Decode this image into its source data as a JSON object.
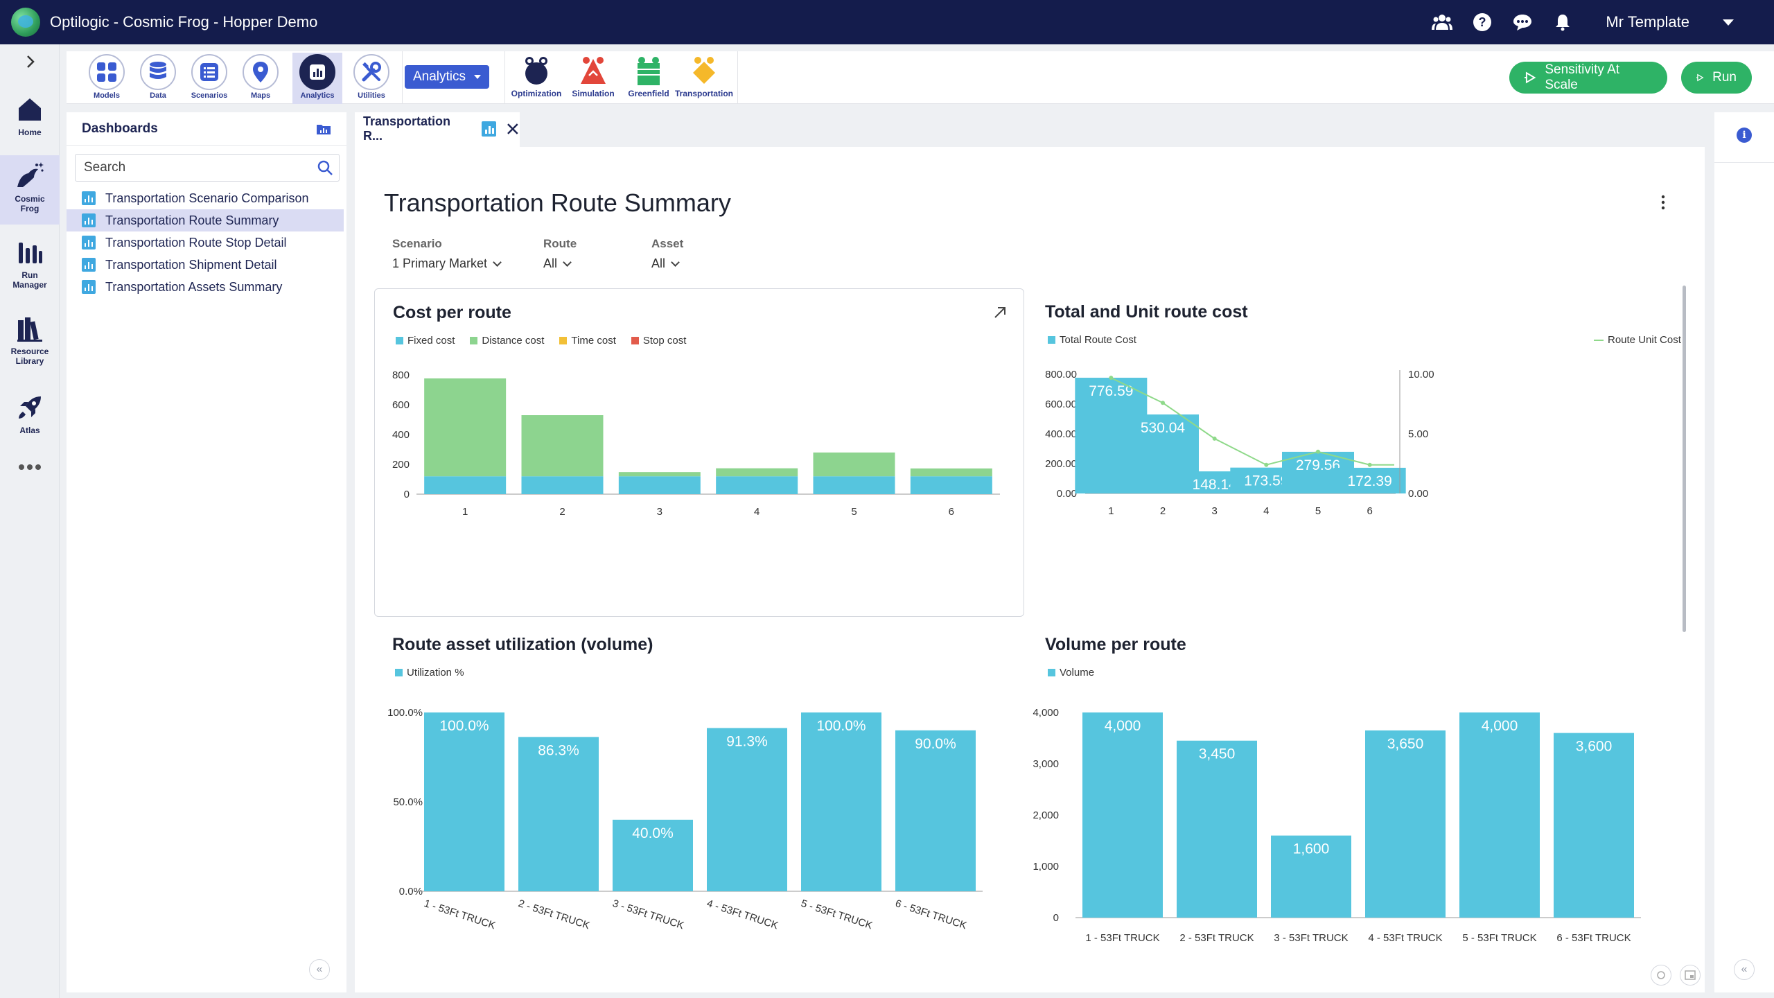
{
  "titlebar": {
    "title": "Optilogic - Cosmic Frog - Hopper Demo",
    "user": "Mr Template"
  },
  "rail": {
    "home": "Home",
    "cosmic_frog_1": "Cosmic",
    "cosmic_frog_2": "Frog",
    "run_manager_1": "Run",
    "run_manager_2": "Manager",
    "resource_library_1": "Resource",
    "resource_library_2": "Library",
    "atlas": "Atlas"
  },
  "toolbar": {
    "models": "Models",
    "data": "Data",
    "scenarios": "Scenarios",
    "maps": "Maps",
    "analytics": "Analytics",
    "utilities": "Utilities",
    "analytics_dropdown": "Analytics",
    "optimization": "Optimization",
    "simulation": "Simulation",
    "greenfield": "Greenfield",
    "transportation": "Transportation",
    "sensitivity": "Sensitivity At Scale",
    "run": "Run"
  },
  "dashboards": {
    "title": "Dashboards",
    "search_placeholder": "Search",
    "items": [
      "Transportation Scenario Comparison",
      "Transportation Route Summary",
      "Transportation Route Stop Detail",
      "Transportation Shipment Detail",
      "Transportation Assets Summary"
    ],
    "selected_index": 1
  },
  "tab": {
    "label": "Transportation R..."
  },
  "page": {
    "title": "Transportation Route Summary",
    "filters": [
      {
        "label": "Scenario",
        "value": "1 Primary Market"
      },
      {
        "label": "Route",
        "value": "All"
      },
      {
        "label": "Asset",
        "value": "All"
      }
    ]
  },
  "colors": {
    "cyan": "#56c5de",
    "green": "#8dd48f",
    "yellow": "#f2c037",
    "red": "#e25b4b",
    "line": "#8fd98a",
    "navy": "#141c4c",
    "accent": "#3a5bd1",
    "run_green": "#2eb366"
  },
  "chart_data": [
    {
      "id": "cost_per_route",
      "type": "bar",
      "title": "Cost per route",
      "stacked": true,
      "categories": [
        "1",
        "2",
        "3",
        "4",
        "5",
        "6"
      ],
      "series": [
        {
          "name": "Fixed cost",
          "color": "#56c5de",
          "values": [
            120,
            120,
            120,
            120,
            120,
            120
          ]
        },
        {
          "name": "Distance cost",
          "color": "#8dd48f",
          "values": [
            656.59,
            410.04,
            28.14,
            53.59,
            159.56,
            52.39
          ]
        },
        {
          "name": "Time cost",
          "color": "#f2c037",
          "values": [
            0,
            0,
            0,
            0,
            0,
            0
          ]
        },
        {
          "name": "Stop cost",
          "color": "#e25b4b",
          "values": [
            0,
            0,
            0,
            0,
            0,
            0
          ]
        }
      ],
      "yticks": [
        "800",
        "600",
        "400",
        "200",
        "0"
      ],
      "ylim": [
        0,
        800
      ],
      "legend": "top-left"
    },
    {
      "id": "total_unit_route_cost",
      "type": "bar",
      "title": "Total and Unit route cost",
      "categories": [
        "1",
        "2",
        "3",
        "4",
        "5",
        "6"
      ],
      "series": [
        {
          "name": "Total Route Cost",
          "color": "#56c5de",
          "values": [
            776.59,
            530.04,
            148.14,
            173.59,
            279.56,
            172.39
          ],
          "labels": [
            "776.59",
            "530.04",
            "148.14",
            "173.59",
            "279.56",
            "172.39"
          ]
        },
        {
          "name": "Route Unit Cost",
          "color": "#8fd98a",
          "type": "line",
          "axis": "right",
          "values": [
            9.7,
            7.6,
            4.6,
            2.4,
            3.5,
            2.4
          ]
        }
      ],
      "yticks": [
        "800.00",
        "600.00",
        "400.00",
        "200.00",
        "0.00"
      ],
      "y2ticks": [
        "10.00",
        "5.00",
        "0.00"
      ],
      "ylim": [
        0,
        800
      ],
      "y2lim": [
        0,
        10
      ],
      "legend": "top"
    },
    {
      "id": "route_asset_utilization",
      "type": "bar",
      "title": "Route asset utilization (volume)",
      "categories": [
        "1 - 53Ft TRUCK",
        "2 - 53Ft TRUCK",
        "3 - 53Ft TRUCK",
        "4 - 53Ft TRUCK",
        "5 - 53Ft TRUCK",
        "6 - 53Ft TRUCK"
      ],
      "series": [
        {
          "name": "Utilization %",
          "color": "#56c5de",
          "values": [
            100.0,
            86.3,
            40.0,
            91.3,
            100.0,
            90.0
          ],
          "labels": [
            "100.0%",
            "86.3%",
            "40.0%",
            "91.3%",
            "100.0%",
            "90.0%"
          ]
        }
      ],
      "yticks": [
        "100.0%",
        "50.0%",
        "0.0%"
      ],
      "ylim": [
        0,
        100
      ],
      "legend": "top-left"
    },
    {
      "id": "volume_per_route",
      "type": "bar",
      "title": "Volume per route",
      "categories": [
        "1 - 53Ft TRUCK",
        "2 - 53Ft TRUCK",
        "3 - 53Ft TRUCK",
        "4 - 53Ft TRUCK",
        "5 - 53Ft TRUCK",
        "6 - 53Ft TRUCK"
      ],
      "series": [
        {
          "name": "Volume",
          "color": "#56c5de",
          "values": [
            4000,
            3450,
            1600,
            3650,
            4000,
            3600
          ],
          "labels": [
            "4,000",
            "3,450",
            "1,600",
            "3,650",
            "4,000",
            "3,600"
          ]
        }
      ],
      "yticks": [
        "4,000",
        "3,000",
        "2,000",
        "1,000",
        "0"
      ],
      "ylim": [
        0,
        4000
      ],
      "legend": "top-left"
    }
  ]
}
